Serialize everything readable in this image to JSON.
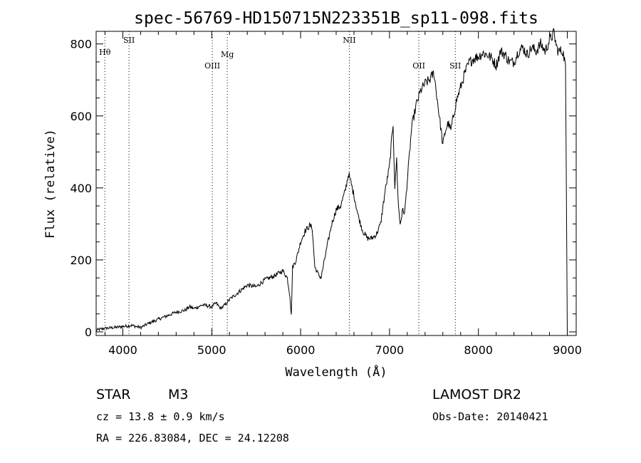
{
  "chart_data": {
    "type": "line",
    "title": "spec-56769-HD150715N223351B_sp11-098.fits",
    "xlabel": "Wavelength (Å)",
    "ylabel": "Flux (relative)",
    "xlim": [
      3700,
      9100
    ],
    "ylim": [
      -10,
      835
    ],
    "x_ticks": [
      4000,
      5000,
      6000,
      7000,
      8000,
      9000
    ],
    "y_ticks": [
      0,
      200,
      400,
      600,
      800
    ],
    "grid": false,
    "spectral_lines": [
      {
        "label": "Hθ",
        "wavelength": 3798
      },
      {
        "label": "SII",
        "wavelength": 4069
      },
      {
        "label": "OIII",
        "wavelength": 5007
      },
      {
        "label": "Mg",
        "wavelength": 5175
      },
      {
        "label": "NII",
        "wavelength": 6548
      },
      {
        "label": "OII",
        "wavelength": 7330
      },
      {
        "label": "SII",
        "wavelength": 7740
      }
    ],
    "series": [
      {
        "x": [
          3700,
          3800,
          3900,
          4000,
          4100,
          4200,
          4300,
          4400,
          4500,
          4600,
          4700,
          4750,
          4800,
          4900,
          5000,
          5050,
          5100,
          5150,
          5200,
          5300,
          5400,
          5500,
          5600,
          5700,
          5800,
          5850,
          5880,
          5895,
          5910,
          5950,
          6000,
          6050,
          6100,
          6130,
          6160,
          6200,
          6230,
          6300,
          6350,
          6400,
          6450,
          6500,
          6540,
          6560,
          6600,
          6650,
          6700,
          6750,
          6800,
          6850,
          6900,
          6950,
          7000,
          7040,
          7060,
          7080,
          7100,
          7120,
          7150,
          7170,
          7200,
          7250,
          7300,
          7350,
          7400,
          7450,
          7500,
          7550,
          7580,
          7600,
          7630,
          7660,
          7690,
          7720,
          7750,
          7800,
          7850,
          7900,
          7950,
          8000,
          8050,
          8100,
          8150,
          8200,
          8250,
          8300,
          8350,
          8400,
          8450,
          8500,
          8550,
          8600,
          8650,
          8700,
          8750,
          8800,
          8850,
          8880,
          8900,
          8950,
          8980,
          9000
        ],
        "y": [
          5,
          10,
          12,
          15,
          18,
          12,
          25,
          35,
          45,
          55,
          60,
          70,
          65,
          75,
          70,
          80,
          65,
          75,
          90,
          110,
          130,
          125,
          145,
          155,
          170,
          150,
          100,
          45,
          180,
          200,
          250,
          280,
          295,
          290,
          180,
          160,
          150,
          240,
          300,
          340,
          350,
          390,
          440,
          420,
          380,
          320,
          280,
          260,
          260,
          270,
          300,
          390,
          460,
          580,
          400,
          480,
          350,
          300,
          340,
          330,
          420,
          570,
          630,
          670,
          690,
          700,
          720,
          620,
          560,
          520,
          560,
          580,
          560,
          600,
          640,
          680,
          720,
          750,
          760,
          765,
          775,
          770,
          760,
          740,
          780,
          770,
          750,
          750,
          780,
          790,
          770,
          790,
          780,
          800,
          780,
          810,
          830,
          790,
          780,
          780,
          740,
          0
        ]
      }
    ]
  },
  "info": {
    "class_label": "STAR",
    "subclass": "M3",
    "survey": "LAMOST DR2",
    "cz": "cz = 13.8 ± 0.9 km/s",
    "obs_date": "Obs-Date: 20140421",
    "coords": "RA = 226.83084, DEC =  24.12208"
  }
}
